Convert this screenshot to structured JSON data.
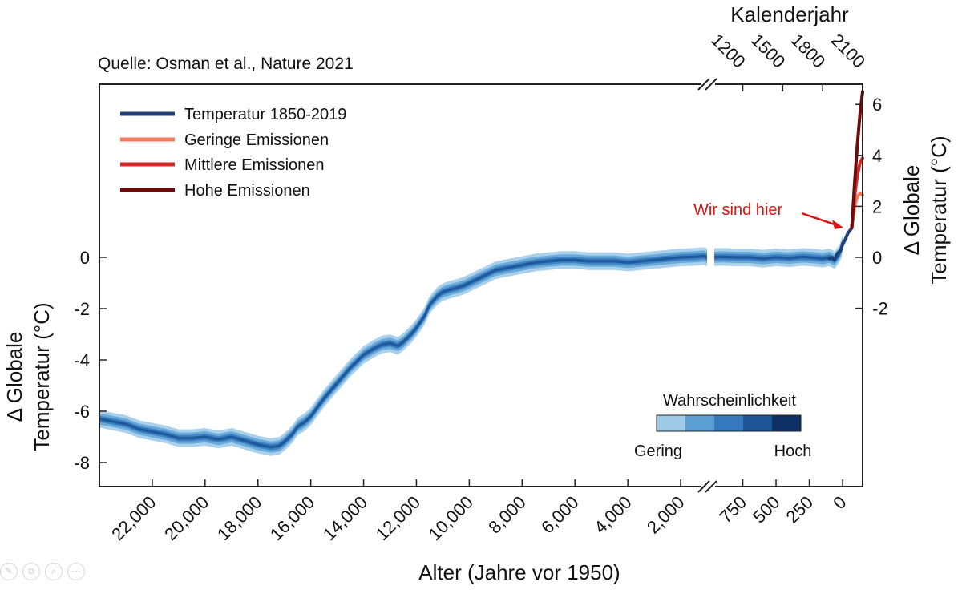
{
  "source_note": "Quelle: Osman et al., Nature 2021",
  "toolbar_icons": [
    "pen-icon",
    "copy-icon",
    "zoom-icon",
    "more-icon"
  ],
  "colors": {
    "historic": "#1f3f7a",
    "low": "#f27a5a",
    "mid": "#d42a2a",
    "high": "#6e0c0c",
    "band_outer": "#a9d1ec",
    "band_mid": "#6aaad8",
    "band_inner": "#3d82c4",
    "core": "#1f5a9e",
    "annotation": "#e01010"
  },
  "chart_data": {
    "type": "line",
    "title": "",
    "xlabel": "Alter (Jahre vor 1950)",
    "ylabel": "Δ Globale Temperatur (°C)",
    "ylabel_lines": [
      "Δ Globale",
      "Temperatur (°C)"
    ],
    "ylabel_right_lines": [
      "Δ Globale",
      "Temperatur (°C)"
    ],
    "top_axis_label": "Kalenderjahr",
    "ylim": [
      -9.0,
      6.4
    ],
    "y_ticks_left": [
      "0",
      "-2",
      "-4",
      "-6",
      "-8"
    ],
    "y_ticks_left_values": [
      0,
      -2,
      -4,
      -6,
      -8
    ],
    "y_ticks_right": [
      "6",
      "4",
      "2",
      "0",
      "-2"
    ],
    "y_ticks_right_values": [
      6,
      4,
      2,
      0,
      -2
    ],
    "x_ticks_segment1": [
      "22,000",
      "20,000",
      "18,000",
      "16,000",
      "14,000",
      "12,000",
      "10,000",
      "8,000",
      "6,000",
      "4,000",
      "2,000"
    ],
    "x_ticks_segment1_values": [
      22000,
      20000,
      18000,
      16000,
      14000,
      12000,
      10000,
      8000,
      6000,
      4000,
      2000
    ],
    "x_ticks_segment2": [
      "750",
      "500",
      "250",
      "0"
    ],
    "x_ticks_segment2_values": [
      750,
      500,
      250,
      0
    ],
    "top_ticks": [
      "1200",
      "1500",
      "1800",
      "2100"
    ],
    "top_ticks_values": [
      1200,
      1500,
      1800,
      2100
    ],
    "segment1_range": [
      24000,
      1000
    ],
    "segment2_range": [
      1000,
      -150
    ],
    "legend": [
      {
        "label": "Temperatur 1850-2019",
        "key": "historic"
      },
      {
        "label": "Geringe Emissionen",
        "key": "low"
      },
      {
        "label": "Mittlere Emissionen",
        "key": "mid"
      },
      {
        "label": "Hohe Emissionen",
        "key": "high"
      }
    ],
    "likelihood": {
      "title": "Wahrscheinlichkeit",
      "low_label": "Gering",
      "high_label": "Hoch",
      "colors": [
        "#9ecae6",
        "#5b9ed2",
        "#3679bc",
        "#1f5597",
        "#0e2f63"
      ]
    },
    "annotation": {
      "text": "Wir sind hier",
      "age": -30,
      "value": 1.1
    },
    "reconstruction": {
      "ages": [
        24000,
        23500,
        23000,
        22500,
        22000,
        21500,
        21000,
        20500,
        20000,
        19500,
        19000,
        18500,
        18000,
        17500,
        17200,
        17000,
        16700,
        16500,
        16200,
        16000,
        15500,
        15000,
        14500,
        14000,
        13600,
        13300,
        13000,
        12700,
        12500,
        12200,
        12000,
        11700,
        11500,
        11200,
        11000,
        10700,
        10500,
        10200,
        10000,
        9500,
        9000,
        8500,
        8000,
        7500,
        7000,
        6500,
        6000,
        5500,
        5000,
        4500,
        4000,
        3500,
        3000,
        2500,
        2000,
        1500,
        1100,
        1000,
        900,
        800,
        700,
        600,
        500,
        400,
        300,
        250,
        200,
        150,
        100,
        60,
        30,
        10,
        0
      ],
      "values": [
        -6.3,
        -6.4,
        -6.5,
        -6.7,
        -6.8,
        -6.9,
        -7.05,
        -7.05,
        -7.0,
        -7.1,
        -7.0,
        -7.15,
        -7.3,
        -7.4,
        -7.35,
        -7.2,
        -6.9,
        -6.6,
        -6.4,
        -6.2,
        -5.5,
        -4.9,
        -4.3,
        -3.8,
        -3.55,
        -3.4,
        -3.35,
        -3.45,
        -3.3,
        -3.0,
        -2.75,
        -2.3,
        -1.85,
        -1.5,
        -1.35,
        -1.25,
        -1.2,
        -1.1,
        -1.0,
        -0.75,
        -0.5,
        -0.4,
        -0.3,
        -0.2,
        -0.15,
        -0.1,
        -0.1,
        -0.15,
        -0.15,
        -0.15,
        -0.2,
        -0.15,
        -0.1,
        -0.05,
        0.0,
        0.02,
        0.05,
        0.0,
        0.02,
        0.0,
        0.0,
        -0.05,
        0.0,
        -0.03,
        0.02,
        0.0,
        -0.02,
        -0.05,
        0.0,
        -0.1,
        0.1,
        0.3,
        0.6
      ]
    },
    "series": [
      {
        "name": "Temperatur 1850-2019",
        "key": "historic",
        "ages": [
          100,
          80,
          60,
          40,
          20,
          10,
          0,
          -20,
          -40,
          -69
        ],
        "values": [
          -0.05,
          0.0,
          -0.1,
          0.15,
          0.25,
          0.35,
          0.5,
          0.7,
          0.95,
          1.15
        ]
      },
      {
        "name": "Geringe Emissionen",
        "key": "low",
        "ages": [
          -69,
          -90,
          -110,
          -130,
          -150
        ],
        "values": [
          1.15,
          2.0,
          2.4,
          2.5,
          2.45
        ]
      },
      {
        "name": "Mittlere Emissionen",
        "key": "mid",
        "ages": [
          -69,
          -90,
          -110,
          -130,
          -150
        ],
        "values": [
          1.15,
          2.4,
          3.2,
          3.7,
          3.9
        ]
      },
      {
        "name": "Hohe Emissionen",
        "key": "high",
        "ages": [
          -69,
          -90,
          -110,
          -130,
          -150
        ],
        "values": [
          1.15,
          2.9,
          4.4,
          5.6,
          6.5
        ]
      }
    ]
  }
}
